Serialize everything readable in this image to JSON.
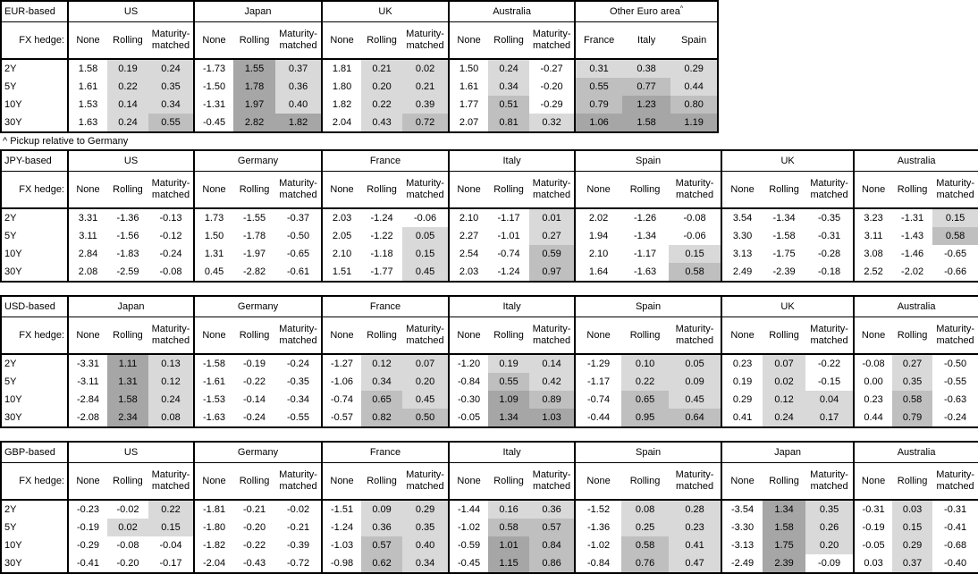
{
  "footnote": "^ Pickup relative to Germany",
  "fx_hedge_label": "FX hedge:",
  "row_labels": [
    "2Y",
    "5Y",
    "10Y",
    "30Y"
  ],
  "colors": {
    "shade_0_to_0p5": "#d9d9d9",
    "shade_0p5_to_1": "#bfbfbf",
    "shade_above_1": "#a6a6a6",
    "border": "#000000",
    "background": "#ffffff"
  },
  "shading_rule": "Rolling, Maturity-matched and Other-Euro-area columns: value < 0 unshaded; 0 to 0.5 light; 0.5 to 1.0 medium; 1.0 and above dark. None columns unshaded.",
  "tables": [
    {
      "base_label": "EUR-based",
      "groups": [
        {
          "name": "US",
          "columns": [
            "None",
            "Rolling",
            "Maturity-matched"
          ],
          "rows": [
            [
              "1.58",
              "0.19",
              "0.24"
            ],
            [
              "1.61",
              "0.22",
              "0.35"
            ],
            [
              "1.53",
              "0.14",
              "0.34"
            ],
            [
              "1.63",
              "0.24",
              "0.55"
            ]
          ]
        },
        {
          "name": "Japan",
          "columns": [
            "None",
            "Rolling",
            "Maturity-matched"
          ],
          "rows": [
            [
              "-1.73",
              "1.55",
              "0.37"
            ],
            [
              "-1.50",
              "1.78",
              "0.36"
            ],
            [
              "-1.31",
              "1.97",
              "0.40"
            ],
            [
              "-0.45",
              "2.82",
              "1.82"
            ]
          ]
        },
        {
          "name": "UK",
          "columns": [
            "None",
            "Rolling",
            "Maturity-matched"
          ],
          "rows": [
            [
              "1.81",
              "0.21",
              "0.02"
            ],
            [
              "1.80",
              "0.20",
              "0.21"
            ],
            [
              "1.82",
              "0.22",
              "0.39"
            ],
            [
              "2.04",
              "0.43",
              "0.72"
            ]
          ]
        },
        {
          "name": "Australia",
          "columns": [
            "None",
            "Rolling",
            "Maturity-matched"
          ],
          "rows": [
            [
              "1.50",
              "0.24",
              "-0.27"
            ],
            [
              "1.61",
              "0.34",
              "-0.20"
            ],
            [
              "1.77",
              "0.51",
              "-0.29"
            ],
            [
              "2.07",
              "0.81",
              "0.32"
            ]
          ]
        },
        {
          "name": "Other Euro area",
          "superscript": "^",
          "columns": [
            "France",
            "Italy",
            "Spain"
          ],
          "rows": [
            [
              "0.31",
              "0.38",
              "0.29"
            ],
            [
              "0.55",
              "0.77",
              "0.44"
            ],
            [
              "0.79",
              "1.23",
              "0.80"
            ],
            [
              "1.06",
              "1.58",
              "1.19"
            ]
          ]
        }
      ]
    },
    {
      "base_label": "JPY-based",
      "groups": [
        {
          "name": "US",
          "columns": [
            "None",
            "Rolling",
            "Maturity-matched"
          ],
          "rows": [
            [
              "3.31",
              "-1.36",
              "-0.13"
            ],
            [
              "3.11",
              "-1.56",
              "-0.12"
            ],
            [
              "2.84",
              "-1.83",
              "-0.24"
            ],
            [
              "2.08",
              "-2.59",
              "-0.08"
            ]
          ]
        },
        {
          "name": "Germany",
          "columns": [
            "None",
            "Rolling",
            "Maturity-matched"
          ],
          "rows": [
            [
              "1.73",
              "-1.55",
              "-0.37"
            ],
            [
              "1.50",
              "-1.78",
              "-0.50"
            ],
            [
              "1.31",
              "-1.97",
              "-0.65"
            ],
            [
              "0.45",
              "-2.82",
              "-0.61"
            ]
          ]
        },
        {
          "name": "France",
          "columns": [
            "None",
            "Rolling",
            "Maturity-matched"
          ],
          "rows": [
            [
              "2.03",
              "-1.24",
              "-0.06"
            ],
            [
              "2.05",
              "-1.22",
              "0.05"
            ],
            [
              "2.10",
              "-1.18",
              "0.15"
            ],
            [
              "1.51",
              "-1.77",
              "0.45"
            ]
          ]
        },
        {
          "name": "Italy",
          "columns": [
            "None",
            "Rolling",
            "Maturity-matched"
          ],
          "rows": [
            [
              "2.10",
              "-1.17",
              "0.01"
            ],
            [
              "2.27",
              "-1.01",
              "0.27"
            ],
            [
              "2.54",
              "-0.74",
              "0.59"
            ],
            [
              "2.03",
              "-1.24",
              "0.97"
            ]
          ]
        },
        {
          "name": "Spain",
          "columns": [
            "None",
            "Rolling",
            "Maturity-matched"
          ],
          "rows": [
            [
              "2.02",
              "-1.26",
              "-0.08"
            ],
            [
              "1.94",
              "-1.34",
              "-0.06"
            ],
            [
              "2.10",
              "-1.17",
              "0.15"
            ],
            [
              "1.64",
              "-1.63",
              "0.58"
            ]
          ]
        },
        {
          "name": "UK",
          "columns": [
            "None",
            "Rolling",
            "Maturity-matched"
          ],
          "rows": [
            [
              "3.54",
              "-1.34",
              "-0.35"
            ],
            [
              "3.30",
              "-1.58",
              "-0.31"
            ],
            [
              "3.13",
              "-1.75",
              "-0.28"
            ],
            [
              "2.49",
              "-2.39",
              "-0.18"
            ]
          ]
        },
        {
          "name": "Australia",
          "columns": [
            "None",
            "Rolling",
            "Maturity-matched"
          ],
          "rows": [
            [
              "3.23",
              "-1.31",
              "0.15"
            ],
            [
              "3.11",
              "-1.43",
              "0.58"
            ],
            [
              "3.08",
              "-1.46",
              "-0.65"
            ],
            [
              "2.52",
              "-2.02",
              "-0.66"
            ]
          ]
        }
      ]
    },
    {
      "base_label": "USD-based",
      "groups": [
        {
          "name": "Japan",
          "columns": [
            "None",
            "Rolling",
            "Maturity-matched"
          ],
          "rows": [
            [
              "-3.31",
              "1.11",
              "0.13"
            ],
            [
              "-3.11",
              "1.31",
              "0.12"
            ],
            [
              "-2.84",
              "1.58",
              "0.24"
            ],
            [
              "-2.08",
              "2.34",
              "0.08"
            ]
          ]
        },
        {
          "name": "Germany",
          "columns": [
            "None",
            "Rolling",
            "Maturity-matched"
          ],
          "rows": [
            [
              "-1.58",
              "-0.19",
              "-0.24"
            ],
            [
              "-1.61",
              "-0.22",
              "-0.35"
            ],
            [
              "-1.53",
              "-0.14",
              "-0.34"
            ],
            [
              "-1.63",
              "-0.24",
              "-0.55"
            ]
          ]
        },
        {
          "name": "France",
          "columns": [
            "None",
            "Rolling",
            "Maturity-matched"
          ],
          "rows": [
            [
              "-1.27",
              "0.12",
              "0.07"
            ],
            [
              "-1.06",
              "0.34",
              "0.20"
            ],
            [
              "-0.74",
              "0.65",
              "0.45"
            ],
            [
              "-0.57",
              "0.82",
              "0.50"
            ]
          ]
        },
        {
          "name": "Italy",
          "columns": [
            "None",
            "Rolling",
            "Maturity-matched"
          ],
          "rows": [
            [
              "-1.20",
              "0.19",
              "0.14"
            ],
            [
              "-0.84",
              "0.55",
              "0.42"
            ],
            [
              "-0.30",
              "1.09",
              "0.89"
            ],
            [
              "-0.05",
              "1.34",
              "1.03"
            ]
          ]
        },
        {
          "name": "Spain",
          "columns": [
            "None",
            "Rolling",
            "Maturity-matched"
          ],
          "rows": [
            [
              "-1.29",
              "0.10",
              "0.05"
            ],
            [
              "-1.17",
              "0.22",
              "0.09"
            ],
            [
              "-0.74",
              "0.65",
              "0.45"
            ],
            [
              "-0.44",
              "0.95",
              "0.64"
            ]
          ]
        },
        {
          "name": "UK",
          "columns": [
            "None",
            "Rolling",
            "Maturity-matched"
          ],
          "rows": [
            [
              "0.23",
              "0.07",
              "-0.22"
            ],
            [
              "0.19",
              "0.02",
              "-0.15"
            ],
            [
              "0.29",
              "0.12",
              "0.04"
            ],
            [
              "0.41",
              "0.24",
              "0.17"
            ]
          ]
        },
        {
          "name": "Australia",
          "columns": [
            "None",
            "Rolling",
            "Maturity-matched"
          ],
          "rows": [
            [
              "-0.08",
              "0.27",
              "-0.50"
            ],
            [
              "0.00",
              "0.35",
              "-0.55"
            ],
            [
              "0.23",
              "0.58",
              "-0.63"
            ],
            [
              "0.44",
              "0.79",
              "-0.24"
            ]
          ]
        }
      ]
    },
    {
      "base_label": "GBP-based",
      "groups": [
        {
          "name": "US",
          "columns": [
            "None",
            "Rolling",
            "Maturity-matched"
          ],
          "rows": [
            [
              "-0.23",
              "-0.02",
              "0.22"
            ],
            [
              "-0.19",
              "0.02",
              "0.15"
            ],
            [
              "-0.29",
              "-0.08",
              "-0.04"
            ],
            [
              "-0.41",
              "-0.20",
              "-0.17"
            ]
          ]
        },
        {
          "name": "Germany",
          "columns": [
            "None",
            "Rolling",
            "Maturity-matched"
          ],
          "rows": [
            [
              "-1.81",
              "-0.21",
              "-0.02"
            ],
            [
              "-1.80",
              "-0.20",
              "-0.21"
            ],
            [
              "-1.82",
              "-0.22",
              "-0.39"
            ],
            [
              "-2.04",
              "-0.43",
              "-0.72"
            ]
          ]
        },
        {
          "name": "France",
          "columns": [
            "None",
            "Rolling",
            "Maturity-matched"
          ],
          "rows": [
            [
              "-1.51",
              "0.09",
              "0.29"
            ],
            [
              "-1.24",
              "0.36",
              "0.35"
            ],
            [
              "-1.03",
              "0.57",
              "0.40"
            ],
            [
              "-0.98",
              "0.62",
              "0.34"
            ]
          ]
        },
        {
          "name": "Italy",
          "columns": [
            "None",
            "Rolling",
            "Maturity-matched"
          ],
          "rows": [
            [
              "-1.44",
              "0.16",
              "0.36"
            ],
            [
              "-1.02",
              "0.58",
              "0.57"
            ],
            [
              "-0.59",
              "1.01",
              "0.84"
            ],
            [
              "-0.45",
              "1.15",
              "0.86"
            ]
          ]
        },
        {
          "name": "Spain",
          "columns": [
            "None",
            "Rolling",
            "Maturity-matched"
          ],
          "rows": [
            [
              "-1.52",
              "0.08",
              "0.28"
            ],
            [
              "-1.36",
              "0.25",
              "0.23"
            ],
            [
              "-1.02",
              "0.58",
              "0.41"
            ],
            [
              "-0.84",
              "0.76",
              "0.47"
            ]
          ]
        },
        {
          "name": "Japan",
          "columns": [
            "None",
            "Rolling",
            "Maturity-matched"
          ],
          "rows": [
            [
              "-3.54",
              "1.34",
              "0.35"
            ],
            [
              "-3.30",
              "1.58",
              "0.26"
            ],
            [
              "-3.13",
              "1.75",
              "0.20"
            ],
            [
              "-2.49",
              "2.39",
              "-0.09"
            ]
          ]
        },
        {
          "name": "Australia",
          "columns": [
            "None",
            "Rolling",
            "Maturity-matched"
          ],
          "rows": [
            [
              "-0.31",
              "0.03",
              "-0.31"
            ],
            [
              "-0.19",
              "0.15",
              "-0.41"
            ],
            [
              "-0.05",
              "0.29",
              "-0.68"
            ],
            [
              "0.03",
              "0.37",
              "-0.40"
            ]
          ]
        }
      ]
    }
  ]
}
